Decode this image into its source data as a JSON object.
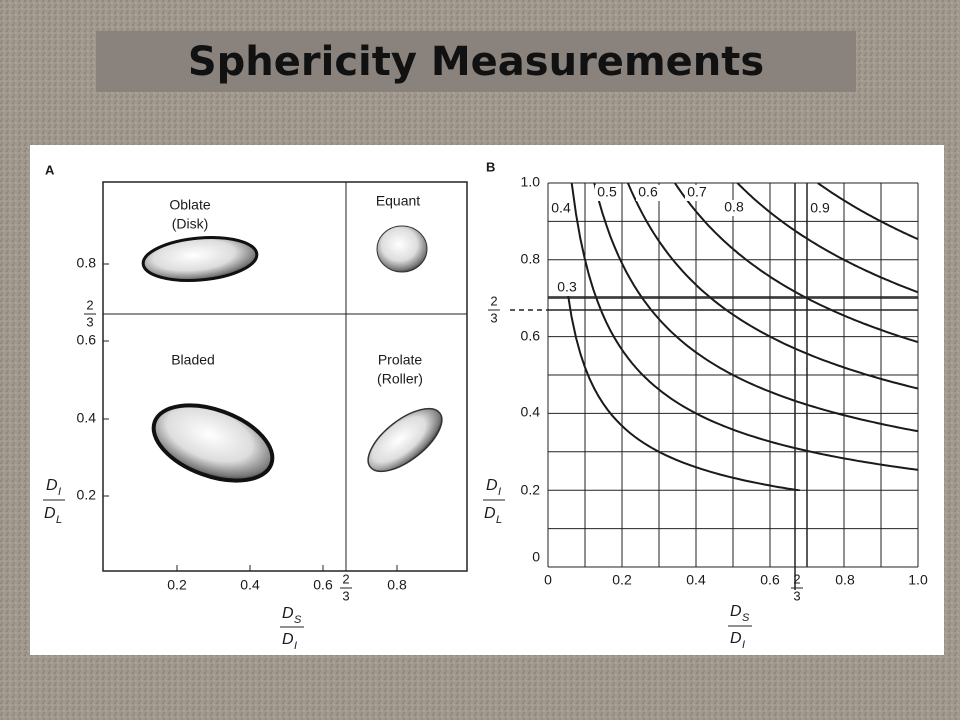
{
  "title": "Sphericity Measurements",
  "panel_a": {
    "label": "A",
    "oblate": [
      "Oblate",
      "(Disk)"
    ],
    "equant": "Equant",
    "bladed": "Bladed",
    "prolate": [
      "Prolate",
      "(Roller)"
    ],
    "y_ticks": [
      "0.8",
      "0.6",
      "0.4",
      "0.2"
    ],
    "y_frac": [
      "2",
      "3"
    ],
    "x_ticks": [
      "0.2",
      "0.4",
      "0.6",
      "0.8"
    ],
    "x_frac": [
      "2",
      "3"
    ],
    "y_axis": [
      "D",
      "I",
      "D",
      "L"
    ],
    "x_axis": [
      "D",
      "S",
      "D",
      "I"
    ]
  },
  "panel_b": {
    "label": "B",
    "xlim": [
      0,
      1
    ],
    "ylim": [
      0,
      1
    ],
    "curves": [
      0.3,
      0.4,
      0.5,
      0.6,
      0.7,
      0.8,
      0.9
    ],
    "y_ticks": [
      "1.0",
      "0.8",
      "0.6",
      "0.4",
      "0.2",
      "0"
    ],
    "y_frac": [
      "2",
      "3"
    ],
    "x_ticks": [
      "0",
      "0.2",
      "0.4",
      "0.6",
      "0.8",
      "1.0"
    ],
    "x_frac": [
      "2",
      "3"
    ],
    "y_axis": [
      "D",
      "I",
      "D",
      "L"
    ],
    "x_axis": [
      "D",
      "S",
      "D",
      "I"
    ]
  }
}
